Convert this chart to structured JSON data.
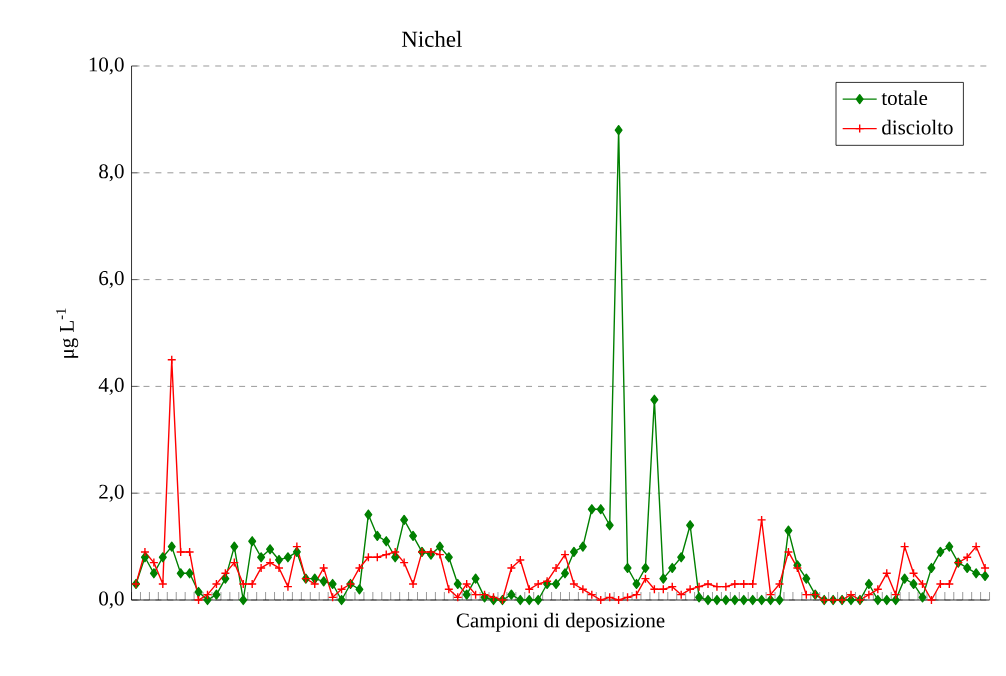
{
  "chart_data": {
    "type": "line",
    "title": "Nichel",
    "xlabel": "Campioni di deposizione",
    "ylabel": "μg L$^{-1}$",
    "categories": [
      null,
      null,
      null,
      null,
      null,
      null,
      null,
      null,
      null,
      null,
      null,
      null,
      null,
      null,
      null,
      null,
      null,
      null,
      null,
      null,
      null,
      null,
      null,
      null,
      null,
      null,
      null,
      null,
      null,
      null,
      null,
      null,
      null,
      null,
      null,
      null,
      null,
      null,
      null,
      null,
      null,
      null,
      null,
      null,
      null,
      null,
      null,
      null,
      null,
      null,
      null,
      null,
      null,
      null,
      null,
      null,
      null,
      null,
      null,
      null,
      null,
      null,
      null,
      null,
      null,
      null,
      null,
      null,
      null,
      null,
      null,
      null,
      null,
      null,
      null,
      null,
      null,
      null,
      null,
      null,
      null,
      null,
      null,
      null,
      null,
      null,
      null,
      null,
      null,
      null,
      null,
      null,
      null,
      null,
      null,
      null
    ],
    "series": [
      {
        "name": "totale",
        "color": "#008000",
        "marker": "diamond",
        "values": [
          0.3,
          0.8,
          0.5,
          0.8,
          1.0,
          0.5,
          0.5,
          0.15,
          0.0,
          0.1,
          0.4,
          1.0,
          0.0,
          1.1,
          0.8,
          0.95,
          0.75,
          0.8,
          0.9,
          0.4,
          0.4,
          0.35,
          0.3,
          0.0,
          0.3,
          0.2,
          1.6,
          1.2,
          1.1,
          0.8,
          1.5,
          1.2,
          0.9,
          0.85,
          1.0,
          0.8,
          0.3,
          0.1,
          0.4,
          0.05,
          0.0,
          0.0,
          0.1,
          0.0,
          0.0,
          0.0,
          0.3,
          0.3,
          0.5,
          0.9,
          1.0,
          1.7,
          1.7,
          1.4,
          8.8,
          0.6,
          0.3,
          0.6,
          3.75,
          0.4,
          0.6,
          0.8,
          1.4,
          0.05,
          0.0,
          0.0,
          0.0,
          0.0,
          0.0,
          0.0,
          0.0,
          0.0,
          0.0,
          1.3,
          0.65,
          0.4,
          0.1,
          0.0,
          0.0,
          0.0,
          0.0,
          0.0,
          0.3,
          0.0,
          0.0,
          0.0,
          0.4,
          0.3,
          0.05,
          0.6,
          0.9,
          1.0,
          0.7,
          0.6,
          0.5,
          0.45
        ]
      },
      {
        "name": "disciolto",
        "color": "#ff0000",
        "marker": "cross",
        "values": [
          0.3,
          0.9,
          0.7,
          0.3,
          4.5,
          0.9,
          0.9,
          0.0,
          0.1,
          0.3,
          0.5,
          0.7,
          0.3,
          0.3,
          0.6,
          0.7,
          0.6,
          0.25,
          1.0,
          0.4,
          0.3,
          0.6,
          0.05,
          0.2,
          0.3,
          0.6,
          0.8,
          0.8,
          0.85,
          0.9,
          0.7,
          0.3,
          0.9,
          0.9,
          0.85,
          0.2,
          0.05,
          0.3,
          0.1,
          0.1,
          0.05,
          0.0,
          0.6,
          0.75,
          0.2,
          0.3,
          0.35,
          0.6,
          0.85,
          0.3,
          0.2,
          0.1,
          0.0,
          0.05,
          0.0,
          0.05,
          0.1,
          0.4,
          0.2,
          0.2,
          0.25,
          0.1,
          0.2,
          0.25,
          0.3,
          0.25,
          0.25,
          0.3,
          0.3,
          0.3,
          1.5,
          0.1,
          0.3,
          0.9,
          0.6,
          0.1,
          0.1,
          0.0,
          0.0,
          0.0,
          0.1,
          0.0,
          0.1,
          0.2,
          0.5,
          0.1,
          1.0,
          0.5,
          0.3,
          0.0,
          0.3,
          0.3,
          0.7,
          0.8,
          1.0,
          0.6
        ]
      }
    ],
    "ylim": [
      0,
      10
    ],
    "yticks": [
      {
        "value": 0,
        "label": "0,0"
      },
      {
        "value": 2,
        "label": "2,0"
      },
      {
        "value": 4,
        "label": "4,0"
      },
      {
        "value": 6,
        "label": "6,0"
      },
      {
        "value": 8,
        "label": "8,0"
      },
      {
        "value": 10,
        "label": "10,0"
      }
    ],
    "grid": "y",
    "legend": "top right",
    "tick_labels": "y",
    "line_style": "solid"
  }
}
